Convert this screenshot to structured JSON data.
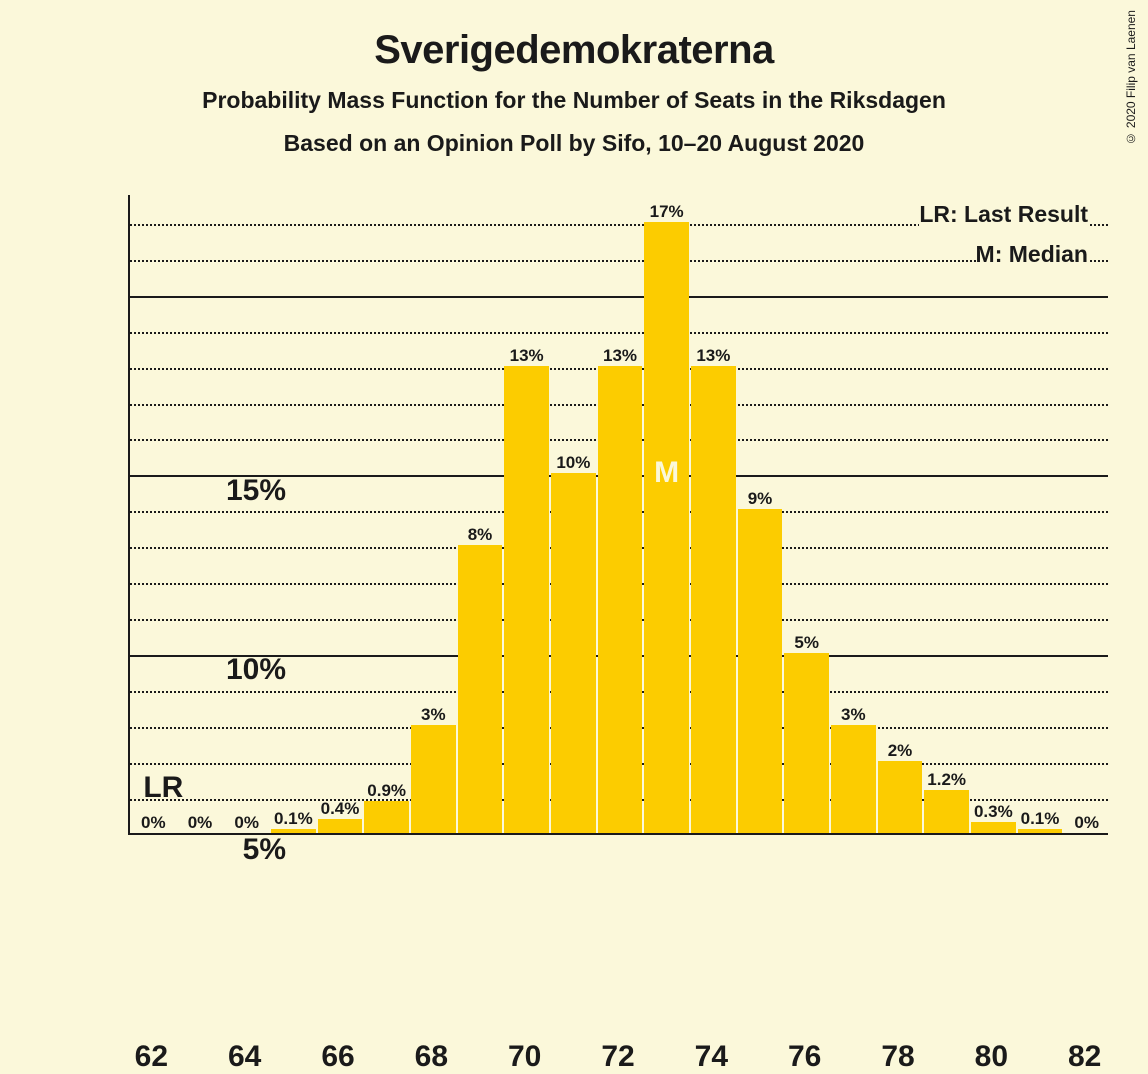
{
  "title": "Sverigedemokraterna",
  "subtitle": "Probability Mass Function for the Number of Seats in the Riksdagen",
  "subtitle2": "Based on an Opinion Poll by Sifo, 10–20 August 2020",
  "copyright": "© 2020 Filip van Laenen",
  "legend": {
    "lr": "LR: Last Result",
    "m": "M: Median"
  },
  "chart": {
    "type": "bar",
    "background_color": "#fbf8da",
    "bar_color": "#fccc00",
    "axis_color": "#1a1a1a",
    "grid_major_color": "#1a1a1a",
    "grid_minor_color": "#1a1a1a",
    "bar_width": 0.96,
    "ylim": [
      0,
      17.8
    ],
    "y_major_ticks": [
      0,
      5,
      10,
      15
    ],
    "y_major_labels": [
      "0%",
      "5%",
      "10%",
      "15%"
    ],
    "y_minor_step": 1,
    "xlim": [
      61.5,
      82.5
    ],
    "x_ticks": [
      62,
      64,
      66,
      68,
      70,
      72,
      74,
      76,
      78,
      80,
      82
    ],
    "categories": [
      62,
      63,
      64,
      65,
      66,
      67,
      68,
      69,
      70,
      71,
      72,
      73,
      74,
      75,
      76,
      77,
      78,
      79,
      80,
      81,
      82
    ],
    "values": [
      0,
      0,
      0,
      0.1,
      0.4,
      0.9,
      3,
      8,
      13,
      10,
      13,
      17,
      13,
      9,
      5,
      3,
      2,
      1.2,
      0.3,
      0.1,
      0
    ],
    "bar_value_labels": [
      "0%",
      "0%",
      "0%",
      "0.1%",
      "0.4%",
      "0.9%",
      "3%",
      "8%",
      "13%",
      "10%",
      "13%",
      "17%",
      "13%",
      "9%",
      "5%",
      "3%",
      "2%",
      "1.2%",
      "0.3%",
      "0.1%",
      "0%"
    ],
    "title_fontsize": 40,
    "subtitle_fontsize": 23,
    "axis_label_fontsize": 30,
    "bar_label_fontsize": 17,
    "median_index": 11,
    "median_text": "M",
    "lr_text": "LR",
    "lr_x": 62
  }
}
